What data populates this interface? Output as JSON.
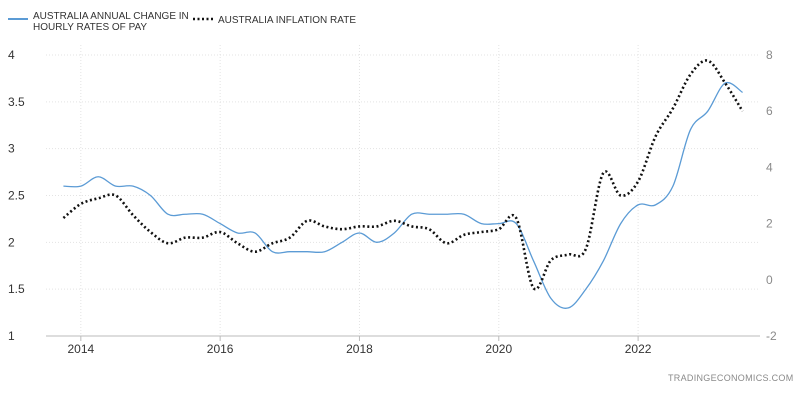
{
  "chart_data": {
    "type": "line",
    "legend": {
      "position": "top-left",
      "pay_label_line1": "AUSTRALIA ANNUAL CHANGE IN",
      "pay_label_line2": "HOURLY RATES OF PAY",
      "inflation_label": "AUSTRALIA INFLATION RATE"
    },
    "source": "TRADINGECONOMICS.COM",
    "grid": true,
    "x_ticks": [
      "2014",
      "2016",
      "2018",
      "2020",
      "2022"
    ],
    "left_axis": {
      "ticks": [
        "1",
        "1.5",
        "2",
        "2.5",
        "3",
        "3.5",
        "4"
      ],
      "ylim": [
        1,
        4
      ]
    },
    "right_axis": {
      "ticks": [
        "-2",
        "0",
        "2",
        "4",
        "6",
        "8"
      ],
      "ylim": [
        -2,
        8
      ]
    },
    "colors": {
      "pay": "#5b9bd5",
      "inflation": "#111111"
    },
    "series": [
      {
        "key": "pay",
        "axis": "left",
        "x": [
          2013.75,
          2014.0,
          2014.25,
          2014.5,
          2014.75,
          2015.0,
          2015.25,
          2015.5,
          2015.75,
          2016.0,
          2016.25,
          2016.5,
          2016.75,
          2017.0,
          2017.25,
          2017.5,
          2017.75,
          2018.0,
          2018.25,
          2018.5,
          2018.75,
          2019.0,
          2019.25,
          2019.5,
          2019.75,
          2020.0,
          2020.25,
          2020.5,
          2020.75,
          2021.0,
          2021.25,
          2021.5,
          2021.75,
          2022.0,
          2022.25,
          2022.5,
          2022.75,
          2023.0,
          2023.25,
          2023.5
        ],
        "values": [
          2.6,
          2.6,
          2.7,
          2.6,
          2.6,
          2.5,
          2.3,
          2.3,
          2.3,
          2.2,
          2.1,
          2.1,
          1.9,
          1.9,
          1.9,
          1.9,
          2.0,
          2.1,
          2.0,
          2.1,
          2.3,
          2.3,
          2.3,
          2.3,
          2.2,
          2.2,
          2.2,
          1.8,
          1.4,
          1.3,
          1.5,
          1.8,
          2.2,
          2.4,
          2.4,
          2.6,
          3.2,
          3.4,
          3.7,
          3.6
        ]
      },
      {
        "key": "inflation",
        "axis": "right",
        "x": [
          2013.75,
          2014.0,
          2014.25,
          2014.5,
          2014.75,
          2015.0,
          2015.25,
          2015.5,
          2015.75,
          2016.0,
          2016.25,
          2016.5,
          2016.75,
          2017.0,
          2017.25,
          2017.5,
          2017.75,
          2018.0,
          2018.25,
          2018.5,
          2018.75,
          2019.0,
          2019.25,
          2019.5,
          2019.75,
          2020.0,
          2020.25,
          2020.5,
          2020.75,
          2021.0,
          2021.25,
          2021.5,
          2021.75,
          2022.0,
          2022.25,
          2022.5,
          2022.75,
          2023.0,
          2023.25,
          2023.5
        ],
        "values": [
          2.2,
          2.7,
          2.9,
          3.0,
          2.3,
          1.7,
          1.3,
          1.5,
          1.5,
          1.7,
          1.3,
          1.0,
          1.3,
          1.5,
          2.1,
          1.9,
          1.8,
          1.9,
          1.9,
          2.1,
          1.9,
          1.8,
          1.3,
          1.6,
          1.7,
          1.8,
          2.2,
          -0.3,
          0.7,
          0.9,
          1.1,
          3.8,
          3.0,
          3.5,
          5.1,
          6.1,
          7.3,
          7.8,
          7.0,
          6.0
        ]
      }
    ]
  }
}
